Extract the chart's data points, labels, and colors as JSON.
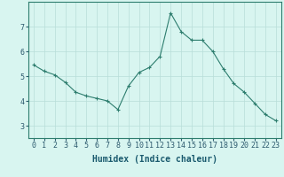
{
  "x": [
    0,
    1,
    2,
    3,
    4,
    5,
    6,
    7,
    8,
    9,
    10,
    11,
    12,
    13,
    14,
    15,
    16,
    17,
    18,
    19,
    20,
    21,
    22,
    23
  ],
  "y": [
    5.45,
    5.2,
    5.05,
    4.75,
    4.35,
    4.2,
    4.1,
    4.0,
    3.65,
    4.6,
    5.15,
    5.35,
    5.8,
    7.55,
    6.8,
    6.45,
    6.45,
    6.0,
    5.3,
    4.7,
    4.35,
    3.9,
    3.45,
    3.2
  ],
  "line_color": "#2d7d6e",
  "marker": "+",
  "marker_size": 3,
  "background_color": "#d8f5f0",
  "grid_color": "#b8ddd8",
  "xlabel": "Humidex (Indice chaleur)",
  "tick_fontsize": 6,
  "xlabel_fontsize": 7,
  "ylim": [
    2.5,
    8.0
  ],
  "xlim": [
    -0.5,
    23.5
  ],
  "yticks": [
    3,
    4,
    5,
    6,
    7
  ],
  "xticks": [
    0,
    1,
    2,
    3,
    4,
    5,
    6,
    7,
    8,
    9,
    10,
    11,
    12,
    13,
    14,
    15,
    16,
    17,
    18,
    19,
    20,
    21,
    22,
    23
  ],
  "xtick_labels": [
    "0",
    "1",
    "2",
    "3",
    "4",
    "5",
    "6",
    "7",
    "8",
    "9",
    "10",
    "11",
    "12",
    "13",
    "14",
    "15",
    "16",
    "17",
    "18",
    "19",
    "20",
    "21",
    "22",
    "23"
  ],
  "line_width": 0.8,
  "spine_color": "#2d7d6e",
  "tick_color": "#2d5a6e",
  "label_color": "#1a5a6e"
}
